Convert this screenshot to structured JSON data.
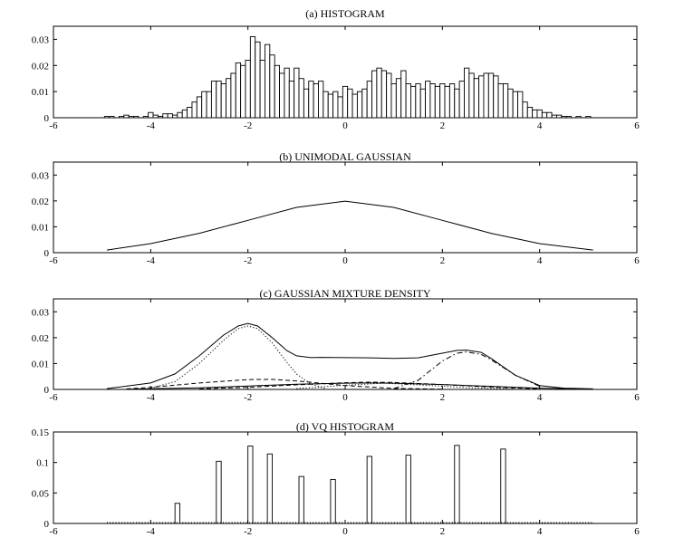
{
  "chart_data": [
    {
      "type": "bar",
      "title": "(a) HISTOGRAM",
      "xlim": [
        -6,
        6
      ],
      "ylim": [
        0,
        0.035
      ],
      "xticks": [
        -6,
        -4,
        -2,
        0,
        2,
        4,
        6
      ],
      "xtick_labels": [
        "-6",
        "-4",
        "-2",
        "0",
        "2",
        "4",
        "6"
      ],
      "yticks": [
        0,
        0.01,
        0.02,
        0.03
      ],
      "ytick_labels": [
        "0",
        "0.01",
        "0.02",
        "0.03"
      ],
      "bin_width": 0.1,
      "bins": [
        [
          -4.9,
          0.0005
        ],
        [
          -4.8,
          0.0005
        ],
        [
          -4.6,
          0.0005
        ],
        [
          -4.5,
          0.001
        ],
        [
          -4.4,
          0.0005
        ],
        [
          -4.3,
          0.0005
        ],
        [
          -4.1,
          0.0005
        ],
        [
          -4.0,
          0.002
        ],
        [
          -3.9,
          0.001
        ],
        [
          -3.8,
          0.0005
        ],
        [
          -3.7,
          0.0015
        ],
        [
          -3.6,
          0.0015
        ],
        [
          -3.5,
          0.001
        ],
        [
          -3.4,
          0.002
        ],
        [
          -3.3,
          0.003
        ],
        [
          -3.2,
          0.004
        ],
        [
          -3.1,
          0.006
        ],
        [
          -3.0,
          0.008
        ],
        [
          -2.9,
          0.01
        ],
        [
          -2.8,
          0.01
        ],
        [
          -2.7,
          0.014
        ],
        [
          -2.6,
          0.014
        ],
        [
          -2.5,
          0.013
        ],
        [
          -2.4,
          0.015
        ],
        [
          -2.3,
          0.017
        ],
        [
          -2.2,
          0.021
        ],
        [
          -2.1,
          0.02
        ],
        [
          -2.0,
          0.022
        ],
        [
          -1.9,
          0.031
        ],
        [
          -1.8,
          0.029
        ],
        [
          -1.7,
          0.022
        ],
        [
          -1.6,
          0.028
        ],
        [
          -1.5,
          0.024
        ],
        [
          -1.4,
          0.02
        ],
        [
          -1.3,
          0.017
        ],
        [
          -1.2,
          0.019
        ],
        [
          -1.1,
          0.014
        ],
        [
          -1.0,
          0.019
        ],
        [
          -0.9,
          0.015
        ],
        [
          -0.8,
          0.011
        ],
        [
          -0.7,
          0.014
        ],
        [
          -0.6,
          0.013
        ],
        [
          -0.5,
          0.014
        ],
        [
          -0.4,
          0.01
        ],
        [
          -0.3,
          0.009
        ],
        [
          -0.2,
          0.01
        ],
        [
          -0.1,
          0.008
        ],
        [
          0.0,
          0.012
        ],
        [
          0.1,
          0.011
        ],
        [
          0.2,
          0.009
        ],
        [
          0.3,
          0.01
        ],
        [
          0.4,
          0.011
        ],
        [
          0.5,
          0.014
        ],
        [
          0.6,
          0.018
        ],
        [
          0.7,
          0.019
        ],
        [
          0.8,
          0.018
        ],
        [
          0.9,
          0.017
        ],
        [
          1.0,
          0.013
        ],
        [
          1.1,
          0.015
        ],
        [
          1.2,
          0.018
        ],
        [
          1.3,
          0.013
        ],
        [
          1.4,
          0.012
        ],
        [
          1.5,
          0.013
        ],
        [
          1.6,
          0.011
        ],
        [
          1.7,
          0.014
        ],
        [
          1.8,
          0.013
        ],
        [
          1.9,
          0.012
        ],
        [
          2.0,
          0.013
        ],
        [
          2.1,
          0.012
        ],
        [
          2.2,
          0.013
        ],
        [
          2.3,
          0.011
        ],
        [
          2.4,
          0.014
        ],
        [
          2.5,
          0.019
        ],
        [
          2.6,
          0.017
        ],
        [
          2.7,
          0.015
        ],
        [
          2.8,
          0.016
        ],
        [
          2.9,
          0.017
        ],
        [
          3.0,
          0.017
        ],
        [
          3.1,
          0.016
        ],
        [
          3.2,
          0.013
        ],
        [
          3.3,
          0.013
        ],
        [
          3.4,
          0.011
        ],
        [
          3.5,
          0.01
        ],
        [
          3.6,
          0.01
        ],
        [
          3.7,
          0.006
        ],
        [
          3.8,
          0.004
        ],
        [
          3.9,
          0.003
        ],
        [
          4.0,
          0.003
        ],
        [
          4.1,
          0.002
        ],
        [
          4.2,
          0.002
        ],
        [
          4.3,
          0.001
        ],
        [
          4.4,
          0.001
        ],
        [
          4.5,
          0.0005
        ],
        [
          4.6,
          0.0005
        ],
        [
          4.8,
          0.0005
        ],
        [
          5.0,
          0.0005
        ]
      ]
    },
    {
      "type": "line",
      "title": "(b) UNIMODAL GAUSSIAN",
      "xlim": [
        -6,
        6
      ],
      "ylim": [
        0,
        0.035
      ],
      "xticks": [
        -6,
        -4,
        -2,
        0,
        2,
        4,
        6
      ],
      "xtick_labels": [
        "-6",
        "-4",
        "-2",
        "0",
        "2",
        "4",
        "6"
      ],
      "yticks": [
        0,
        0.01,
        0.02,
        0.03
      ],
      "ytick_labels": [
        "0",
        "0.01",
        "0.02",
        "0.03"
      ],
      "series": [
        {
          "style": "solid",
          "x": [
            -4.9,
            -4.0,
            -3.0,
            -2.0,
            -1.0,
            0.0,
            1.0,
            2.0,
            3.0,
            4.0,
            5.1
          ],
          "y": [
            0.001,
            0.0035,
            0.0075,
            0.0125,
            0.0175,
            0.0199,
            0.0175,
            0.0125,
            0.0075,
            0.0035,
            0.001
          ]
        }
      ]
    },
    {
      "type": "line",
      "title": "(c) GAUSSIAN MIXTURE DENSITY",
      "xlim": [
        -6,
        6
      ],
      "ylim": [
        0,
        0.035
      ],
      "xticks": [
        -6,
        -4,
        -2,
        0,
        2,
        4,
        6
      ],
      "xtick_labels": [
        "-6",
        "-4",
        "-2",
        "0",
        "2",
        "4",
        "6"
      ],
      "yticks": [
        0,
        0.01,
        0.02,
        0.03
      ],
      "ytick_labels": [
        "0",
        "0.01",
        "0.02",
        "0.03"
      ],
      "series": [
        {
          "style": "solid",
          "x": [
            -4.9,
            -4.0,
            -3.5,
            -3.0,
            -2.5,
            -2.2,
            -2.0,
            -1.8,
            -1.5,
            -1.2,
            -1.0,
            -0.7,
            -0.5,
            0.0,
            0.5,
            1.0,
            1.5,
            2.0,
            2.3,
            2.5,
            2.8,
            3.0,
            3.5,
            4.0,
            4.5,
            5.1
          ],
          "y": [
            0.0003,
            0.0025,
            0.006,
            0.013,
            0.021,
            0.0245,
            0.0255,
            0.0245,
            0.02,
            0.015,
            0.013,
            0.0123,
            0.0124,
            0.0123,
            0.0122,
            0.012,
            0.0122,
            0.014,
            0.0151,
            0.0152,
            0.0143,
            0.012,
            0.0055,
            0.0015,
            0.0005,
            0.0002
          ]
        },
        {
          "style": "dotted",
          "x": [
            -4.0,
            -3.5,
            -3.0,
            -2.5,
            -2.2,
            -2.0,
            -1.8,
            -1.5,
            -1.2,
            -1.0,
            -0.7,
            -0.4
          ],
          "y": [
            0.0005,
            0.003,
            0.01,
            0.019,
            0.0235,
            0.0245,
            0.0235,
            0.018,
            0.0105,
            0.006,
            0.002,
            0.0003
          ]
        },
        {
          "style": "dashdot",
          "x": [
            1.0,
            1.5,
            2.0,
            2.3,
            2.5,
            2.8,
            3.0,
            3.5,
            4.0
          ],
          "y": [
            0.0003,
            0.0035,
            0.011,
            0.014,
            0.0145,
            0.0135,
            0.0115,
            0.0055,
            0.0012
          ]
        },
        {
          "style": "dashed",
          "x": [
            -4.5,
            -4.0,
            -3.0,
            -2.0,
            -1.5,
            -1.0,
            0.0,
            1.0,
            2.0
          ],
          "y": [
            0.0002,
            0.0008,
            0.0025,
            0.0038,
            0.0039,
            0.0033,
            0.0015,
            0.0004,
            0.0001
          ]
        },
        {
          "style": "dashed",
          "x": [
            -3.0,
            -2.0,
            -1.0,
            0.0,
            0.5,
            1.0,
            2.0,
            3.0,
            4.0
          ],
          "y": [
            0.0002,
            0.0008,
            0.0018,
            0.0026,
            0.0028,
            0.0027,
            0.0019,
            0.0009,
            0.0002
          ]
        },
        {
          "style": "solid",
          "x": [
            -4.5,
            -3.0,
            -2.0,
            -1.0,
            0.0,
            0.5,
            1.0,
            2.0,
            3.0,
            4.0,
            5.0
          ],
          "y": [
            0.0001,
            0.0006,
            0.0013,
            0.002,
            0.0024,
            0.0025,
            0.0024,
            0.0019,
            0.0012,
            0.0005,
            0.0001
          ]
        },
        {
          "style": "dotted",
          "x": [
            -1.0,
            0.0,
            0.8,
            1.5,
            2.5,
            3.5
          ],
          "y": [
            0.0003,
            0.0016,
            0.0024,
            0.0018,
            0.0007,
            0.0001
          ]
        }
      ]
    },
    {
      "type": "bar",
      "title": "(d) VQ HISTOGRAM",
      "xlim": [
        -6,
        6
      ],
      "ylim": [
        0,
        0.15
      ],
      "xticks": [
        -6,
        -4,
        -2,
        0,
        2,
        4,
        6
      ],
      "xtick_labels": [
        "-6",
        "-4",
        "-2",
        "0",
        "2",
        "4",
        "6"
      ],
      "yticks": [
        0,
        0.05,
        0.1,
        0.15
      ],
      "ytick_labels": [
        "0",
        "0.05",
        "0.1",
        "0.15"
      ],
      "bin_width": 0.1,
      "bins": [
        [
          -3.45,
          0.033
        ],
        [
          -2.6,
          0.102
        ],
        [
          -1.95,
          0.127
        ],
        [
          -1.55,
          0.114
        ],
        [
          -0.9,
          0.077
        ],
        [
          -0.25,
          0.072
        ],
        [
          0.5,
          0.11
        ],
        [
          1.3,
          0.112
        ],
        [
          2.3,
          0.128
        ],
        [
          3.25,
          0.122
        ]
      ],
      "baseline_markers_x": [
        -4.9,
        5.1
      ]
    }
  ]
}
